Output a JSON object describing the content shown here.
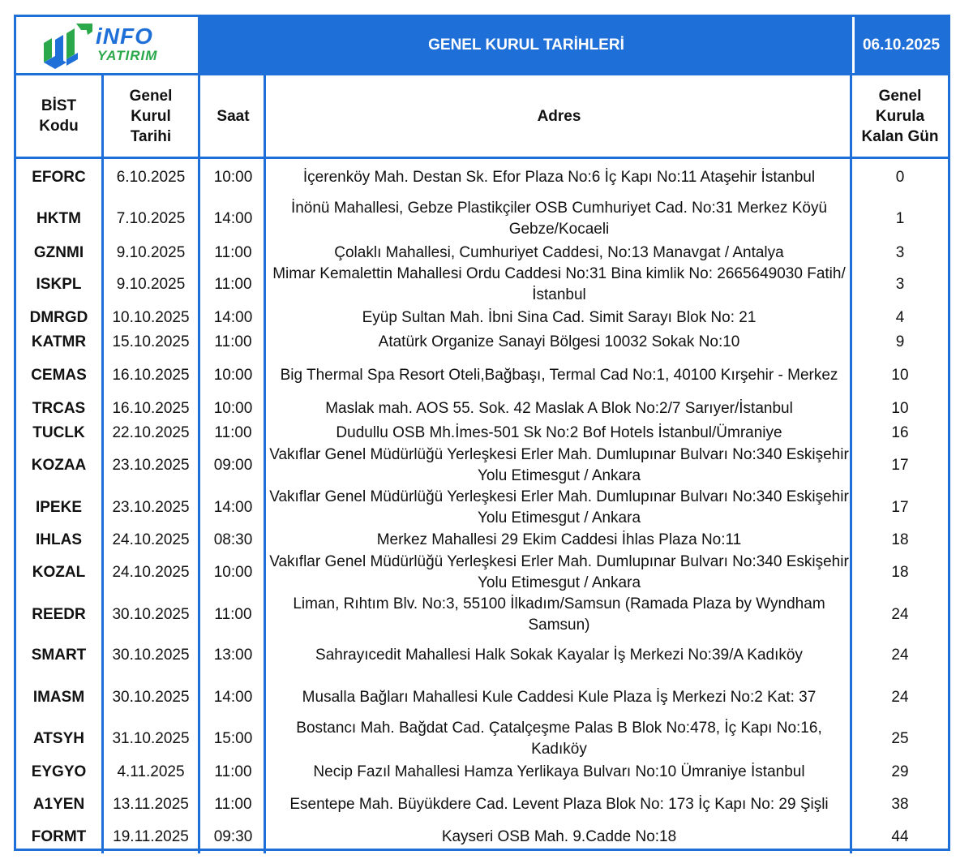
{
  "header": {
    "logo_main": "iNFO",
    "logo_sub": "YATIRIM",
    "title": "GENEL KURUL TARİHLERİ",
    "date": "06.10.2025"
  },
  "columns": {
    "code": "BİST\nKodu",
    "date": "Genel\nKurul\nTarihi",
    "time": "Saat",
    "address": "Adres",
    "days": "Genel\nKurula\nKalan Gün"
  },
  "rows": [
    {
      "code": "EFORC",
      "date": "6.10.2025",
      "time": "10:00",
      "address": "İçerenköy Mah. Destan Sk. Efor Plaza No:6 İç Kapı No:11 Ataşehir İstanbul",
      "days": "0"
    },
    {
      "code": "HKTM",
      "date": "7.10.2025",
      "time": "14:00",
      "address": "İnönü Mahallesi, Gebze Plastikçiler OSB Cumhuriyet Cad. No:31 Merkez Köyü Gebze/Kocaeli",
      "days": "1"
    },
    {
      "code": "GZNMI",
      "date": "9.10.2025",
      "time": "11:00",
      "address": "Çolaklı Mahallesi, Cumhuriyet Caddesi, No:13 Manavgat / Antalya",
      "days": "3"
    },
    {
      "code": "ISKPL",
      "date": "9.10.2025",
      "time": "11:00",
      "address": "Mimar Kemalettin Mahallesi Ordu Caddesi No:31 Bina kimlik No: 2665649030 Fatih/İstanbul",
      "days": "3"
    },
    {
      "code": "DMRGD",
      "date": "10.10.2025",
      "time": "14:00",
      "address": "Eyüp Sultan Mah. İbni Sina Cad. Simit Sarayı Blok No: 21",
      "days": "4"
    },
    {
      "code": "KATMR",
      "date": "15.10.2025",
      "time": "11:00",
      "address": "Atatürk Organize Sanayi Bölgesi 10032 Sokak No:10",
      "days": "9"
    },
    {
      "code": "CEMAS",
      "date": "16.10.2025",
      "time": "10:00",
      "address": "Big Thermal Spa Resort Oteli,Bağbaşı, Termal Cad No:1, 40100 Kırşehir - Merkez",
      "days": "10"
    },
    {
      "code": "TRCAS",
      "date": "16.10.2025",
      "time": "10:00",
      "address": "Maslak mah. AOS 55. Sok. 42 Maslak A Blok No:2/7 Sarıyer/İstanbul",
      "days": "10"
    },
    {
      "code": "TUCLK",
      "date": "22.10.2025",
      "time": "11:00",
      "address": "Dudullu OSB Mh.İmes-501 Sk No:2 Bof Hotels İstanbul/Ümraniye",
      "days": "16"
    },
    {
      "code": "KOZAA",
      "date": "23.10.2025",
      "time": "09:00",
      "address": "Vakıflar Genel Müdürlüğü Yerleşkesi Erler Mah. Dumlupınar Bulvarı No:340 Eskişehir Yolu Etimesgut / Ankara",
      "days": "17"
    },
    {
      "code": "IPEKE",
      "date": "23.10.2025",
      "time": "14:00",
      "address": "Vakıflar Genel Müdürlüğü Yerleşkesi Erler Mah. Dumlupınar Bulvarı No:340 Eskişehir Yolu Etimesgut / Ankara",
      "days": "17"
    },
    {
      "code": "IHLAS",
      "date": "24.10.2025",
      "time": "08:30",
      "address": "Merkez Mahallesi 29 Ekim Caddesi İhlas Plaza No:11",
      "days": "18"
    },
    {
      "code": "KOZAL",
      "date": "24.10.2025",
      "time": "10:00",
      "address": "Vakıflar Genel Müdürlüğü Yerleşkesi Erler Mah. Dumlupınar Bulvarı No:340 Eskişehir Yolu Etimesgut / Ankara",
      "days": "18"
    },
    {
      "code": "REEDR",
      "date": "30.10.2025",
      "time": "11:00",
      "address": "Liman, Rıhtım Blv. No:3, 55100 İlkadım/Samsun (Ramada Plaza by Wyndham Samsun)",
      "days": "24"
    },
    {
      "code": "SMART",
      "date": "30.10.2025",
      "time": "13:00",
      "address": "Sahrayıcedit Mahallesi Halk Sokak Kayalar İş Merkezi No:39/A Kadıköy",
      "days": "24"
    },
    {
      "code": "IMASM",
      "date": "30.10.2025",
      "time": "14:00",
      "address": "Musalla Bağları Mahallesi Kule Caddesi Kule Plaza İş Merkezi No:2 Kat: 37",
      "days": "24"
    },
    {
      "code": "ATSYH",
      "date": "31.10.2025",
      "time": "15:00",
      "address": "Bostancı Mah. Bağdat Cad. Çatalçeşme Palas B Blok No:478, İç Kapı No:16, Kadıköy",
      "days": "25"
    },
    {
      "code": "EYGYO",
      "date": "4.11.2025",
      "time": "11:00",
      "address": "Necip Fazıl Mahallesi Hamza Yerlikaya Bulvarı No:10 Ümraniye İstanbul",
      "days": "29"
    },
    {
      "code": "A1YEN",
      "date": "13.11.2025",
      "time": "11:00",
      "address": "Esentepe Mah. Büyükdere Cad. Levent Plaza Blok No: 173 İç Kapı No: 29 Şişli",
      "days": "38"
    },
    {
      "code": "FORMT",
      "date": "19.11.2025",
      "time": "09:30",
      "address": "Kayseri OSB Mah. 9.Cadde No:18",
      "days": "44"
    }
  ]
}
